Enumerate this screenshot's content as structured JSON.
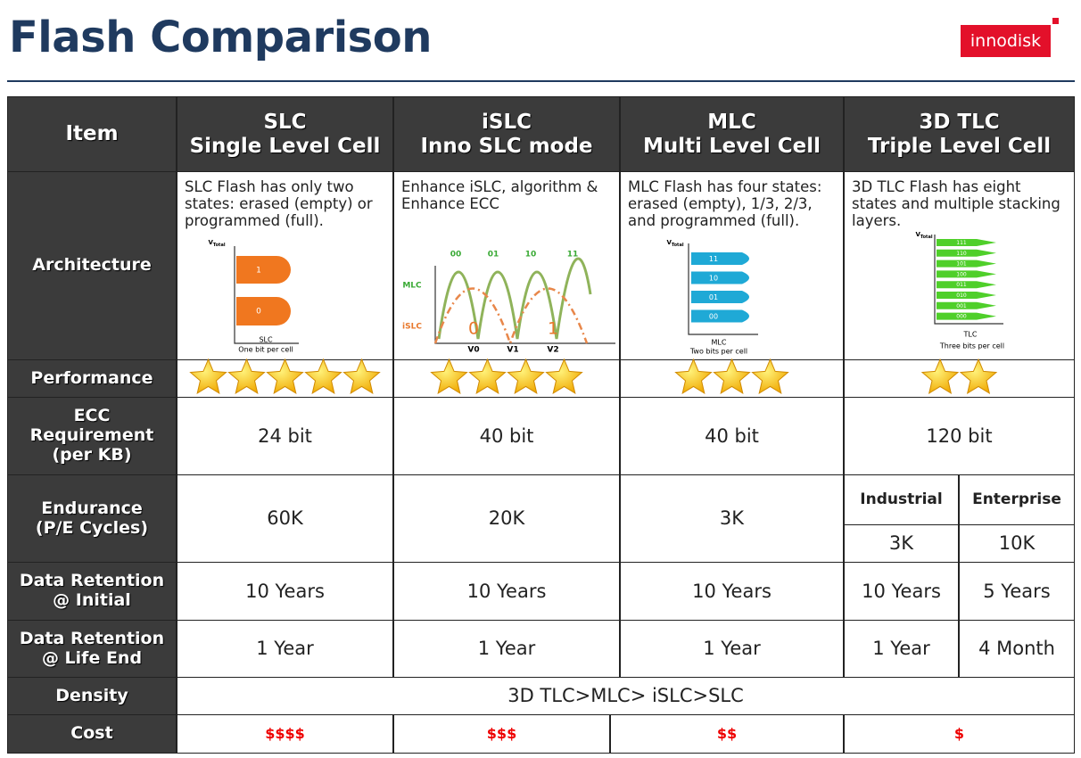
{
  "header": {
    "title": "Flash Comparison",
    "logo": "innodisk"
  },
  "table": {
    "corner": "Item",
    "columns": [
      {
        "line1": "SLC",
        "line2": "Single Level Cell"
      },
      {
        "line1": "iSLC",
        "line2": "Inno SLC mode"
      },
      {
        "line1": "MLC",
        "line2": "Multi Level Cell"
      },
      {
        "line1": "3D TLC",
        "line2": "Triple Level Cell"
      }
    ],
    "architecture": {
      "label": "Architecture",
      "descriptions": [
        "SLC Flash has only two states: erased (empty) or programmed (full).",
        "Enhance iSLC, algorithm & Enhance ECC",
        "MLC Flash has four states: erased (empty), 1/3, 2/3, and programmed (full).",
        "3D TLC Flash has eight states and multiple stacking layers."
      ]
    },
    "performance": {
      "label": "Performance",
      "stars": [
        5,
        4,
        3,
        2
      ]
    },
    "ecc": {
      "label_lines": [
        "ECC",
        "Requirement",
        "(per KB)"
      ],
      "values": [
        "24 bit",
        "40 bit",
        "40 bit",
        "120 bit"
      ]
    },
    "endurance": {
      "label_lines": [
        "Endurance",
        "(P/E Cycles)"
      ],
      "values": [
        "60K",
        "20K",
        "3K"
      ],
      "tlc_grades": [
        "Industrial",
        "Enterprise"
      ],
      "tlc_values": [
        "3K",
        "10K"
      ]
    },
    "retention_initial": {
      "label_lines": [
        "Data Retention",
        "@ Initial"
      ],
      "values": [
        "10 Years",
        "10 Years",
        "10 Years",
        "10 Years",
        "5 Years"
      ]
    },
    "retention_life_end": {
      "label_lines": [
        "Data Retention",
        "@ Life End"
      ],
      "values": [
        "1 Year",
        "1 Year",
        "1 Year",
        "1 Year",
        "4 Month"
      ]
    },
    "density": {
      "label": "Density",
      "value": "3D TLC>MLC> iSLC>SLC"
    },
    "cost": {
      "label": "Cost",
      "values": [
        "$$$$",
        "$$$",
        "$$",
        "$"
      ]
    }
  },
  "diagrams": {
    "slc": {
      "y_axis": "V",
      "y_axis_sub": "Total",
      "levels": [
        "1",
        "0"
      ],
      "x_label": "SLC",
      "caption": "One bit per cell"
    },
    "islc": {
      "mlc_states": [
        "00",
        "01",
        "10",
        "11"
      ],
      "curves": [
        "MLC",
        "iSLC"
      ],
      "islc_states": [
        "0",
        "1"
      ],
      "x_ticks": [
        "V0",
        "V1",
        "V2"
      ]
    },
    "mlc": {
      "y_axis": "V",
      "y_axis_sub": "Total",
      "levels": [
        "11",
        "10",
        "01",
        "00"
      ],
      "x_label": "MLC",
      "caption": "Two bits per cell"
    },
    "tlc": {
      "y_axis": "V",
      "y_axis_sub": "Total",
      "levels": [
        "111",
        "110",
        "101",
        "100",
        "011",
        "010",
        "001",
        "000"
      ],
      "x_label": "TLC",
      "caption": "Three bits per cell"
    }
  }
}
